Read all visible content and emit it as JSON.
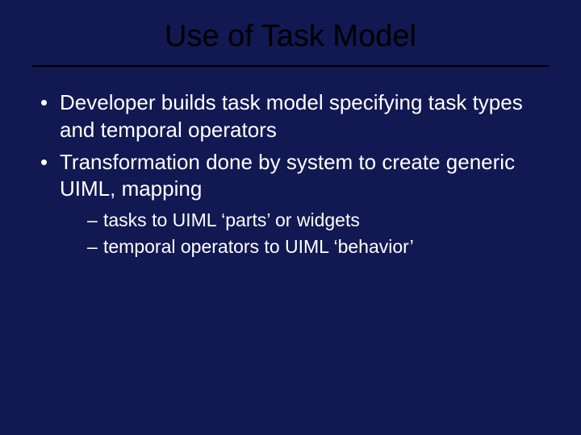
{
  "slide": {
    "title": "Use of Task Model",
    "background_color": "#111852",
    "title_color": "#000000",
    "text_color": "#ffffff",
    "divider_color": "#000000",
    "title_fontsize": 38,
    "bullet_fontsize": 26,
    "sub_fontsize": 23,
    "bullets": [
      {
        "text": "Developer builds task model specifying task types and temporal operators",
        "subs": []
      },
      {
        "text": "Transformation done by system to create generic UIML, mapping",
        "subs": [
          "tasks to UIML ‘parts’ or widgets",
          "temporal operators to UIML ‘behavior’"
        ]
      }
    ]
  }
}
